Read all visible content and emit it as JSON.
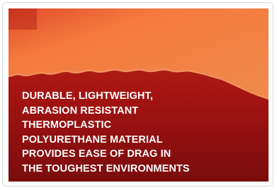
{
  "card": {
    "lines": [
      "DURABLE, LIGHTWEIGHT,",
      "ABRASION RESISTANT",
      "THERMOPLASTIC",
      "POLYURETHANE MATERIAL",
      "PROVIDES EASE OF DRAG IN",
      "THE TOUGHEST ENVIRONMENTS"
    ]
  }
}
